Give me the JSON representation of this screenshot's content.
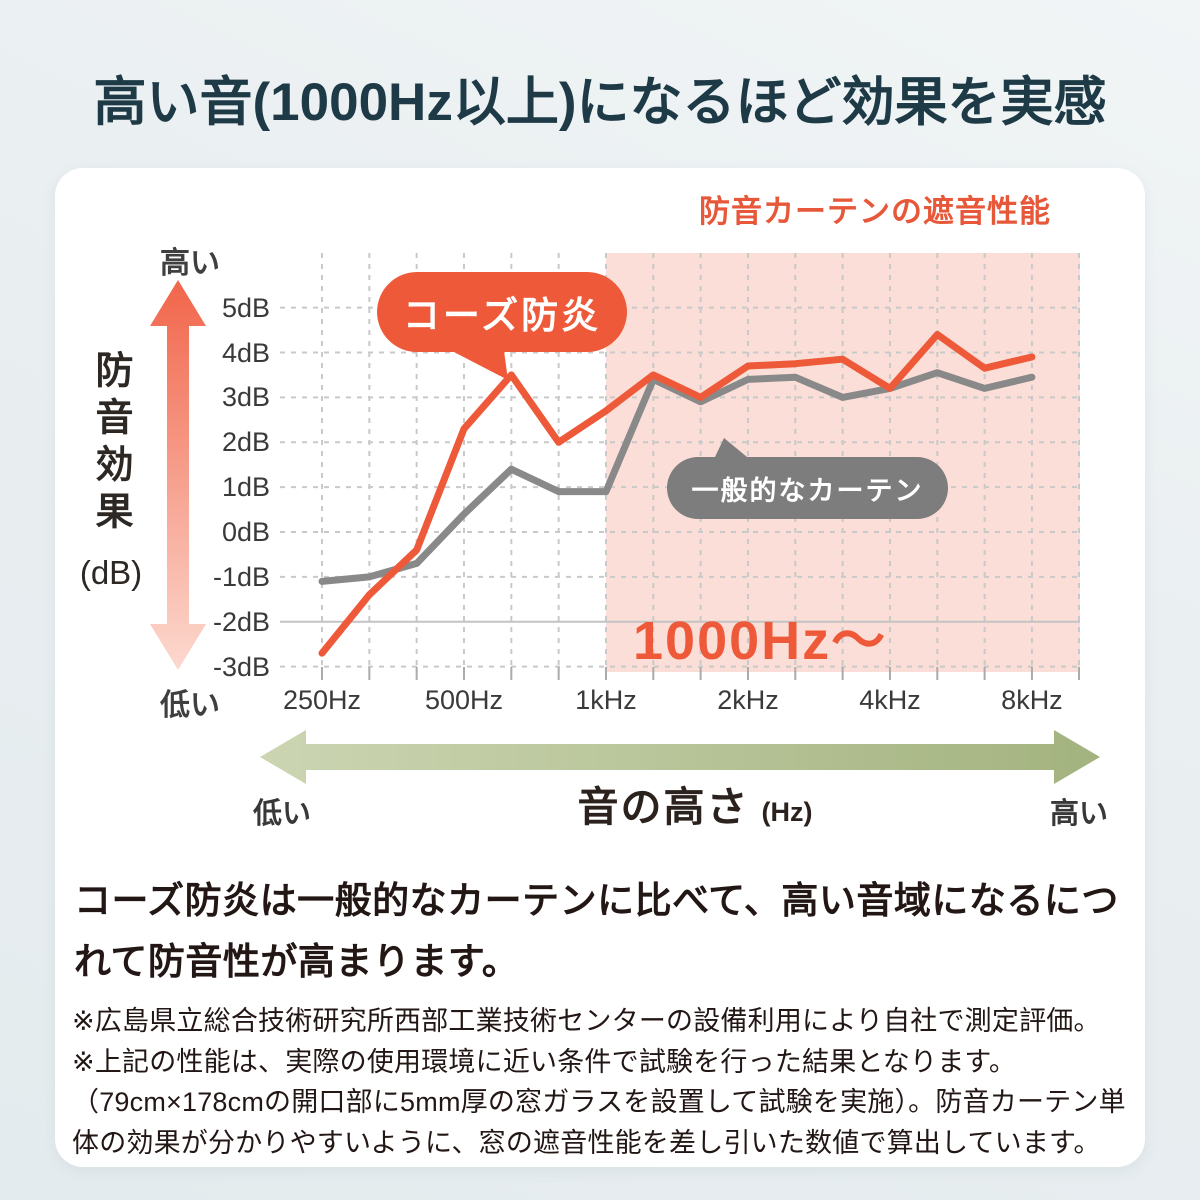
{
  "page_title": "高い音(1000Hz以上)になるほど効果を実感",
  "chart": {
    "title": "防音カーテンの遮音性能",
    "colors": {
      "accent_orange": "#ee5a39",
      "series2_gray": "#898989",
      "bubble_gray": "#7d7d7d",
      "highlight_pink": "#fbded7",
      "grid_gray": "#c9c9c9",
      "solid_grid_gray": "#c4c3c3",
      "title_navy": "#1d3a46",
      "text_dark": "#221714"
    },
    "y_axis": {
      "high_label": "高い",
      "low_label": "低い",
      "title": "防音効果",
      "unit": "(dB)",
      "tick_labels": [
        "5dB",
        "4dB",
        "3dB",
        "2dB",
        "1dB",
        "0dB",
        "-1dB",
        "-2dB",
        "-3dB"
      ],
      "tick_values": [
        5,
        4,
        3,
        2,
        1,
        0,
        -1,
        -2,
        -3
      ]
    },
    "x_axis": {
      "tick_labels": [
        "250Hz",
        "500Hz",
        "1kHz",
        "2kHz",
        "4kHz",
        "8kHz"
      ],
      "tick_band_indices": [
        0,
        3,
        6,
        9,
        12,
        15
      ],
      "arrow_low_label": "低い",
      "arrow_title": "音の高さ",
      "arrow_unit": "(Hz)",
      "arrow_high_label": "高い"
    },
    "annotations": {
      "series1_label": "コーズ防炎",
      "series2_label": "一般的なカーテン",
      "highlight_label": "1000Hz〜"
    }
  },
  "chart_data": {
    "type": "line",
    "title": "防音カーテンの遮音性能",
    "x_scale": "one-third-octave bands (log)",
    "x": [
      250,
      315,
      400,
      500,
      630,
      800,
      1000,
      1250,
      1600,
      2000,
      2500,
      3150,
      4000,
      5000,
      6300,
      8000
    ],
    "ylabel": "防音効果 (dB)",
    "ylim": [
      -3,
      5
    ],
    "grid": true,
    "highlight_region": {
      "from_hz": 1000,
      "label": "1000Hz〜"
    },
    "series": [
      {
        "name": "コーズ防炎",
        "color": "#ee5a39",
        "values": [
          -2.7,
          -1.4,
          -0.4,
          2.3,
          3.5,
          2.0,
          2.7,
          3.5,
          3.0,
          3.7,
          3.75,
          3.85,
          3.2,
          4.4,
          3.65,
          3.9
        ]
      },
      {
        "name": "一般的なカーテン",
        "color": "#898989",
        "values": [
          -1.1,
          -1.0,
          -0.7,
          0.4,
          1.4,
          0.9,
          0.9,
          3.4,
          2.9,
          3.4,
          3.45,
          3.0,
          3.2,
          3.55,
          3.2,
          3.45
        ]
      }
    ]
  },
  "body_text": {
    "lines": [
      "コーズ防炎は一般的なカーテンに比べて、高い音域になるにつ",
      "れて防音性が高まります。"
    ]
  },
  "notes": [
    "※広島県立総合技術研究所西部工業技術センターの設備利用により自社で測定評価。",
    "※上記の性能は、実際の使用環境に近い条件で試験を行った結果となります。",
    "（79cm×178cmの開口部に5mm厚の窓ガラスを設置して試験を実施）。防音カーテン単",
    "体の効果が分かりやすいように、窓の遮音性能を差し引いた数値で算出しています。"
  ]
}
